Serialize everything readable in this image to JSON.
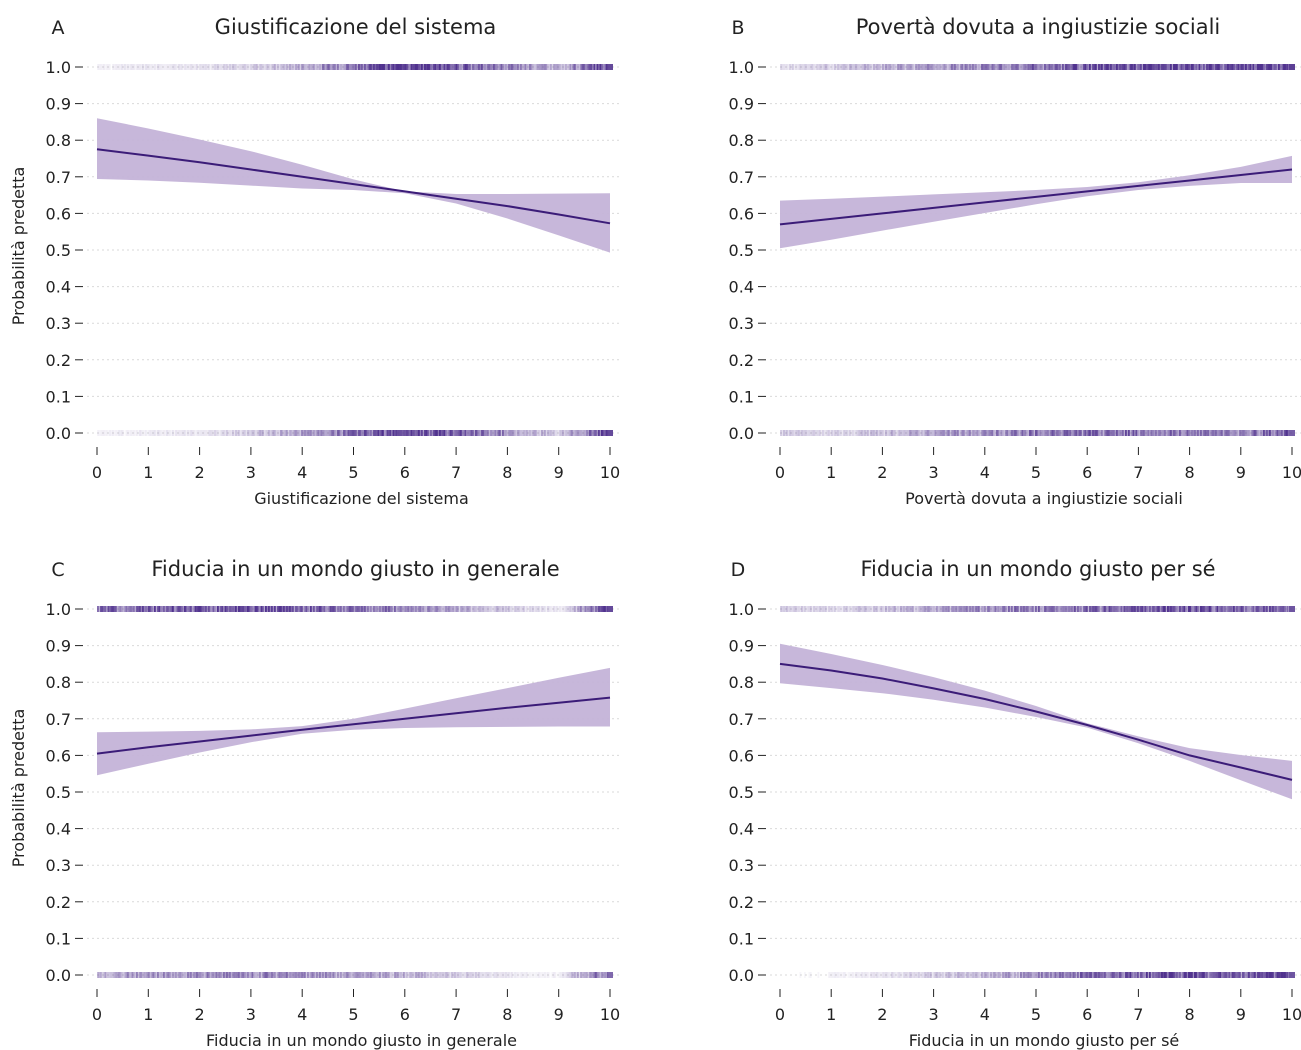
{
  "figure": {
    "ylabel": "Probabilità predetta",
    "colors": {
      "line": "#3b1c78",
      "band": "#c4b3d8",
      "rug": "#4a2a8a",
      "grid": "#d9d9d9",
      "text": "#222222"
    }
  },
  "chart_data": [
    {
      "type": "line",
      "panel_letter": "A",
      "title": "Giustificazione del sistema",
      "xlabel": "Giustificazione del sistema",
      "ylabel": "Probabilità predetta",
      "xlim": [
        0,
        10
      ],
      "ylim": [
        0,
        1
      ],
      "x_ticks": [
        "0",
        "1",
        "2",
        "3",
        "4",
        "5",
        "6",
        "7",
        "8",
        "9",
        "10"
      ],
      "y_ticks": [
        "0.0",
        "0.1",
        "0.2",
        "0.3",
        "0.4",
        "0.5",
        "0.6",
        "0.7",
        "0.8",
        "0.9",
        "1.0"
      ],
      "grid": true,
      "fit": {
        "x": [
          0,
          1,
          2,
          3,
          4,
          5,
          6,
          7,
          8,
          9,
          10
        ],
        "y": [
          0.775,
          0.758,
          0.74,
          0.72,
          0.7,
          0.68,
          0.66,
          0.64,
          0.62,
          0.597,
          0.573
        ]
      },
      "ci_upper": [
        0.86,
        0.832,
        0.802,
        0.77,
        0.733,
        0.693,
        0.66,
        0.653,
        0.653,
        0.654,
        0.655
      ],
      "ci_lower": [
        0.694,
        0.69,
        0.684,
        0.676,
        0.668,
        0.664,
        0.655,
        0.627,
        0.586,
        0.54,
        0.493
      ],
      "rug_top": [
        0.05,
        0.1,
        0.1,
        0.2,
        0.35,
        0.6,
        0.8,
        0.7,
        0.5,
        0.3,
        0.85
      ],
      "rug_bottom": [
        0.05,
        0.08,
        0.1,
        0.2,
        0.4,
        0.6,
        0.8,
        0.7,
        0.45,
        0.2,
        0.85
      ]
    },
    {
      "type": "line",
      "panel_letter": "B",
      "title": "Povertà dovuta a ingiustizie sociali",
      "xlabel": "Povertà dovuta a ingiustizie sociali",
      "ylabel": "",
      "xlim": [
        0,
        10
      ],
      "ylim": [
        0,
        1
      ],
      "x_ticks": [
        "0",
        "1",
        "2",
        "3",
        "4",
        "5",
        "6",
        "7",
        "8",
        "9",
        "10"
      ],
      "y_ticks": [
        "0.0",
        "0.1",
        "0.2",
        "0.3",
        "0.4",
        "0.5",
        "0.6",
        "0.7",
        "0.8",
        "0.9",
        "1.0"
      ],
      "grid": true,
      "fit": {
        "x": [
          0,
          1,
          2,
          3,
          4,
          5,
          6,
          7,
          8,
          9,
          10
        ],
        "y": [
          0.57,
          0.585,
          0.6,
          0.615,
          0.63,
          0.645,
          0.66,
          0.675,
          0.69,
          0.705,
          0.72
        ]
      },
      "ci_upper": [
        0.635,
        0.64,
        0.646,
        0.652,
        0.658,
        0.664,
        0.672,
        0.685,
        0.704,
        0.727,
        0.757
      ],
      "ci_lower": [
        0.505,
        0.528,
        0.553,
        0.577,
        0.601,
        0.625,
        0.647,
        0.664,
        0.675,
        0.683,
        0.683
      ],
      "rug_top": [
        0.15,
        0.2,
        0.3,
        0.4,
        0.5,
        0.6,
        0.7,
        0.75,
        0.8,
        0.85,
        0.9
      ],
      "rug_bottom": [
        0.2,
        0.15,
        0.25,
        0.35,
        0.45,
        0.55,
        0.6,
        0.6,
        0.55,
        0.5,
        0.75
      ]
    },
    {
      "type": "line",
      "panel_letter": "C",
      "title": "Fiducia in un mondo giusto in generale",
      "xlabel": "Fiducia in un mondo giusto in generale",
      "ylabel": "Probabilità predetta",
      "xlim": [
        0,
        10
      ],
      "ylim": [
        0,
        1
      ],
      "x_ticks": [
        "0",
        "1",
        "2",
        "3",
        "4",
        "5",
        "6",
        "7",
        "8",
        "9",
        "10"
      ],
      "y_ticks": [
        "0.0",
        "0.1",
        "0.2",
        "0.3",
        "0.4",
        "0.5",
        "0.6",
        "0.7",
        "0.8",
        "0.9",
        "1.0"
      ],
      "grid": true,
      "fit": {
        "x": [
          0,
          1,
          2,
          3,
          4,
          5,
          6,
          7,
          8,
          9,
          10
        ],
        "y": [
          0.605,
          0.622,
          0.638,
          0.654,
          0.67,
          0.685,
          0.7,
          0.715,
          0.73,
          0.744,
          0.758
        ]
      },
      "ci_upper": [
        0.663,
        0.665,
        0.667,
        0.671,
        0.68,
        0.7,
        0.728,
        0.756,
        0.784,
        0.812,
        0.839
      ],
      "ci_lower": [
        0.546,
        0.577,
        0.608,
        0.636,
        0.659,
        0.67,
        0.675,
        0.677,
        0.678,
        0.679,
        0.679
      ],
      "rug_top": [
        0.6,
        0.65,
        0.7,
        0.75,
        0.7,
        0.6,
        0.5,
        0.35,
        0.2,
        0.08,
        0.85
      ],
      "rug_bottom": [
        0.3,
        0.45,
        0.5,
        0.5,
        0.45,
        0.4,
        0.3,
        0.2,
        0.1,
        0.05,
        0.7
      ]
    },
    {
      "type": "line",
      "panel_letter": "D",
      "title": "Fiducia in un mondo giusto per sé",
      "xlabel": "Fiducia in un mondo giusto per sé",
      "ylabel": "",
      "xlim": [
        0,
        10
      ],
      "ylim": [
        0,
        1
      ],
      "x_ticks": [
        "0",
        "1",
        "2",
        "3",
        "4",
        "5",
        "6",
        "7",
        "8",
        "9",
        "10"
      ],
      "y_ticks": [
        "0.0",
        "0.1",
        "0.2",
        "0.3",
        "0.4",
        "0.5",
        "0.6",
        "0.7",
        "0.8",
        "0.9",
        "1.0"
      ],
      "grid": true,
      "fit": {
        "x": [
          0,
          1,
          2,
          3,
          4,
          5,
          6,
          7,
          8,
          9,
          10
        ],
        "y": [
          0.85,
          0.832,
          0.81,
          0.783,
          0.754,
          0.72,
          0.683,
          0.643,
          0.6,
          0.567,
          0.533
        ]
      },
      "ci_upper": [
        0.905,
        0.877,
        0.847,
        0.814,
        0.777,
        0.735,
        0.688,
        0.652,
        0.62,
        0.601,
        0.585
      ],
      "ci_lower": [
        0.797,
        0.784,
        0.77,
        0.752,
        0.731,
        0.705,
        0.676,
        0.633,
        0.585,
        0.532,
        0.48
      ],
      "rug_top": [
        0.2,
        0.15,
        0.25,
        0.35,
        0.45,
        0.55,
        0.6,
        0.65,
        0.75,
        0.65,
        0.8
      ],
      "rug_bottom": [
        0.02,
        0.05,
        0.1,
        0.2,
        0.3,
        0.45,
        0.6,
        0.7,
        0.8,
        0.6,
        0.8
      ]
    }
  ]
}
